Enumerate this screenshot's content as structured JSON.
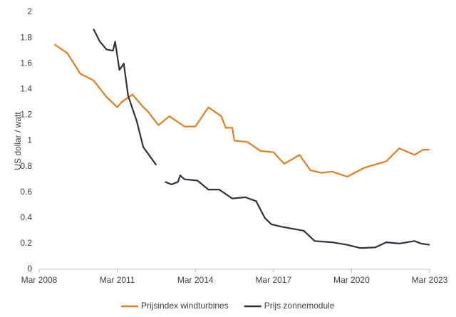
{
  "chart_data": {
    "type": "line",
    "y_label": "US dollar / watt",
    "xlim": [
      "2008-03",
      "2023-03"
    ],
    "xticks": [
      {
        "value": "2008-03",
        "label": "Mar 2008"
      },
      {
        "value": "2011-03",
        "label": "Mar 2011"
      },
      {
        "value": "2014-03",
        "label": "Mar 2014"
      },
      {
        "value": "2017-03",
        "label": "Mar 2017"
      },
      {
        "value": "2020-03",
        "label": "Mar 2020"
      },
      {
        "value": "2023-03",
        "label": "Mar 2023"
      }
    ],
    "ylim": [
      0,
      2
    ],
    "yticks": [
      0,
      0.2,
      0.4,
      0.6,
      0.8,
      1,
      1.2,
      1.4,
      1.6,
      1.8,
      2
    ],
    "grid": false,
    "legend": "bottom",
    "series": [
      {
        "name": "Prijsindex windturbines",
        "color": "#e87d1e",
        "x": [
          "2008-10",
          "2009-04",
          "2009-10",
          "2010-04",
          "2010-10",
          "2011-03",
          "2011-05",
          "2011-10",
          "2012-03",
          "2012-05",
          "2012-10",
          "2013-03",
          "2013-10",
          "2014-03",
          "2014-09",
          "2015-03",
          "2015-05",
          "2015-08",
          "2015-09",
          "2016-03",
          "2016-09",
          "2017-03",
          "2017-08",
          "2018-03",
          "2018-08",
          "2019-01",
          "2019-06",
          "2020-01",
          "2020-09",
          "2021-07",
          "2022-01",
          "2022-08",
          "2022-12",
          "2023-03"
        ],
        "values": [
          1.75,
          1.68,
          1.52,
          1.47,
          1.34,
          1.26,
          1.3,
          1.36,
          1.26,
          1.23,
          1.12,
          1.19,
          1.11,
          1.11,
          1.26,
          1.19,
          1.1,
          1.1,
          1.0,
          0.99,
          0.92,
          0.91,
          0.82,
          0.89,
          0.77,
          0.75,
          0.76,
          0.72,
          0.79,
          0.84,
          0.94,
          0.89,
          0.93,
          0.93
        ]
      },
      {
        "name": "Prijs zonnemodule",
        "color": "#2e3140",
        "x": [
          "2010-04",
          "2010-07",
          "2010-10",
          "2011-01",
          "2011-02",
          "2011-04",
          "2011-06",
          "2011-08",
          "2011-12",
          "2012-03",
          "2012-06",
          "2012-09",
          "2012-11",
          "2013-01",
          "2013-04",
          "2013-07",
          "2013-08",
          "2013-10",
          "2014-04",
          "2014-09",
          "2015-02",
          "2015-08",
          "2016-02",
          "2016-07",
          "2016-11",
          "2017-02",
          "2017-07",
          "2018-05",
          "2018-10",
          "2019-06",
          "2020-01",
          "2020-07",
          "2021-02",
          "2021-07",
          "2022-01",
          "2022-08",
          "2022-11",
          "2023-03"
        ],
        "values": [
          1.87,
          1.77,
          1.71,
          1.7,
          1.77,
          1.55,
          1.6,
          1.35,
          1.15,
          0.95,
          0.88,
          0.81,
          null,
          0.68,
          0.66,
          0.68,
          0.73,
          0.7,
          0.69,
          0.62,
          0.62,
          0.55,
          0.56,
          0.53,
          0.4,
          0.35,
          0.33,
          0.3,
          0.22,
          0.21,
          0.19,
          0.165,
          0.17,
          0.21,
          0.2,
          0.22,
          0.2,
          0.19
        ]
      }
    ]
  }
}
